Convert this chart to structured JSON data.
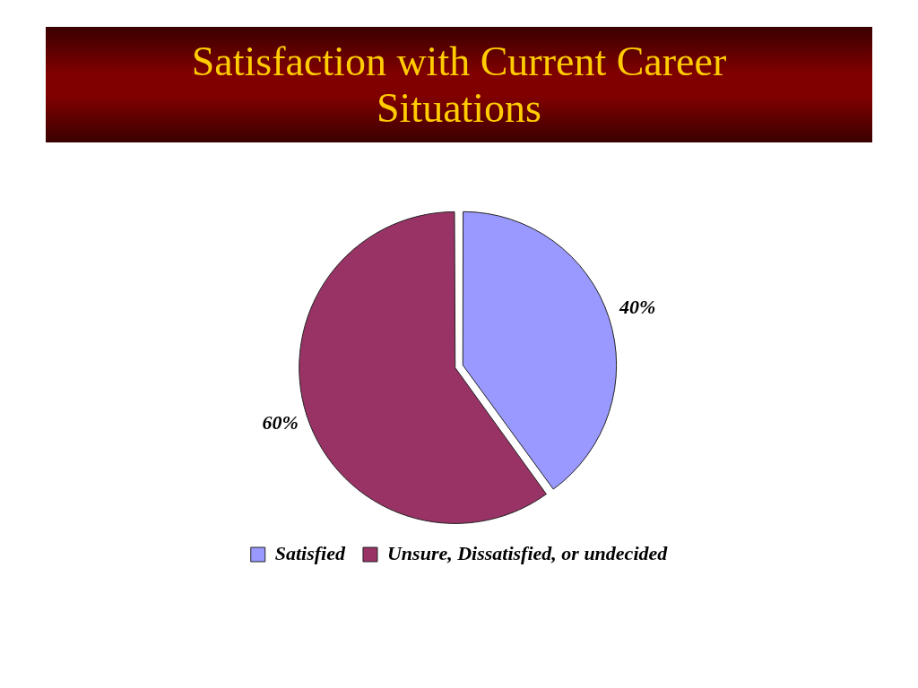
{
  "chart_data": {
    "type": "pie",
    "title": "Satisfaction with Current Career Situations",
    "categories": [
      "Satisfied",
      "Unsure, Dissatisfied, or undecided"
    ],
    "values": [
      40,
      60
    ],
    "colors": [
      "#9999ff",
      "#993366"
    ],
    "value_labels": [
      "40%",
      "60%"
    ],
    "legend": "bottom"
  }
}
